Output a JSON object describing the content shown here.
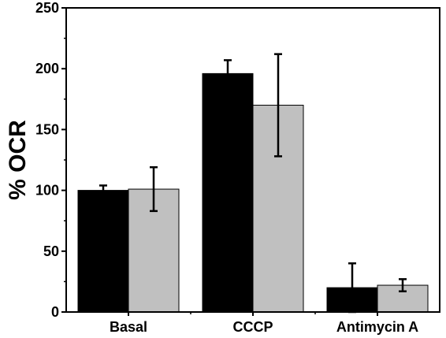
{
  "chart_data": {
    "type": "bar",
    "title": "",
    "xlabel": "",
    "ylabel": "% OCR",
    "ylim": [
      0,
      250
    ],
    "yticks": [
      0,
      50,
      100,
      150,
      200,
      250
    ],
    "categories": [
      "Basal",
      "CCCP",
      "Antimycin A"
    ],
    "series": [
      {
        "color": "#000000",
        "values": [
          100,
          196,
          20
        ],
        "errors": [
          4,
          11,
          20
        ]
      },
      {
        "color": "#c0c0c0",
        "values": [
          101,
          170,
          22
        ],
        "errors": [
          18,
          42,
          5
        ]
      }
    ],
    "grid": false,
    "legend": "none"
  }
}
